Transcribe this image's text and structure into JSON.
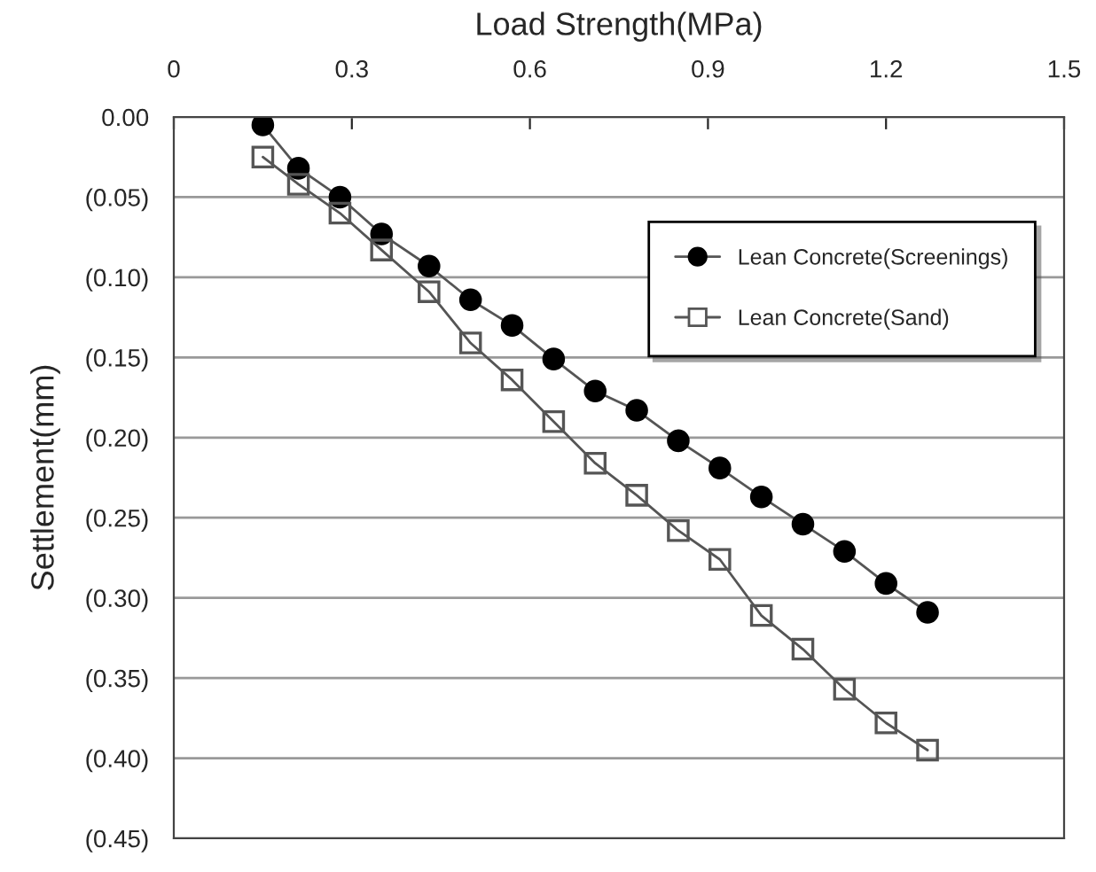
{
  "chart_data": {
    "type": "line",
    "xlabel": "Load Strength(MPa)",
    "ylabel": "Settlement(mm)",
    "xlim": [
      0,
      1.5
    ],
    "xticks": [
      0,
      0.3,
      0.6,
      0.9,
      1.2,
      1.5
    ],
    "ylim": [
      0.45,
      0
    ],
    "yticks": [
      {
        "value": 0,
        "label": "0.00"
      },
      {
        "value": 0.05,
        "label": "(0.05)"
      },
      {
        "value": 0.1,
        "label": "(0.10)"
      },
      {
        "value": 0.15,
        "label": "(0.15)"
      },
      {
        "value": 0.2,
        "label": "(0.20)"
      },
      {
        "value": 0.25,
        "label": "(0.25)"
      },
      {
        "value": 0.3,
        "label": "(0.30)"
      },
      {
        "value": 0.35,
        "label": "(0.35)"
      },
      {
        "value": 0.4,
        "label": "(0.40)"
      },
      {
        "value": 0.45,
        "label": "(0.45)"
      }
    ],
    "x": [
      0.15,
      0.21,
      0.28,
      0.35,
      0.43,
      0.5,
      0.57,
      0.64,
      0.71,
      0.78,
      0.85,
      0.92,
      0.99,
      1.06,
      1.13,
      1.2,
      1.27
    ],
    "grid": "y",
    "legend": "top right",
    "series": [
      {
        "name": "Lean Concrete(Screenings)",
        "color": "#000000",
        "marker": "circle",
        "values": [
          0.005,
          0.032,
          0.05,
          0.073,
          0.093,
          0.114,
          0.13,
          0.151,
          0.171,
          0.183,
          0.202,
          0.219,
          0.237,
          0.254,
          0.271,
          0.291,
          0.309
        ]
      },
      {
        "name": "Lean Concrete(Sand)",
        "color": "#555555",
        "marker": "square",
        "values": [
          0.025,
          0.042,
          0.06,
          0.083,
          0.109,
          0.141,
          0.164,
          0.19,
          0.216,
          0.236,
          0.258,
          0.276,
          0.311,
          0.332,
          0.357,
          0.378,
          0.395
        ]
      }
    ]
  }
}
